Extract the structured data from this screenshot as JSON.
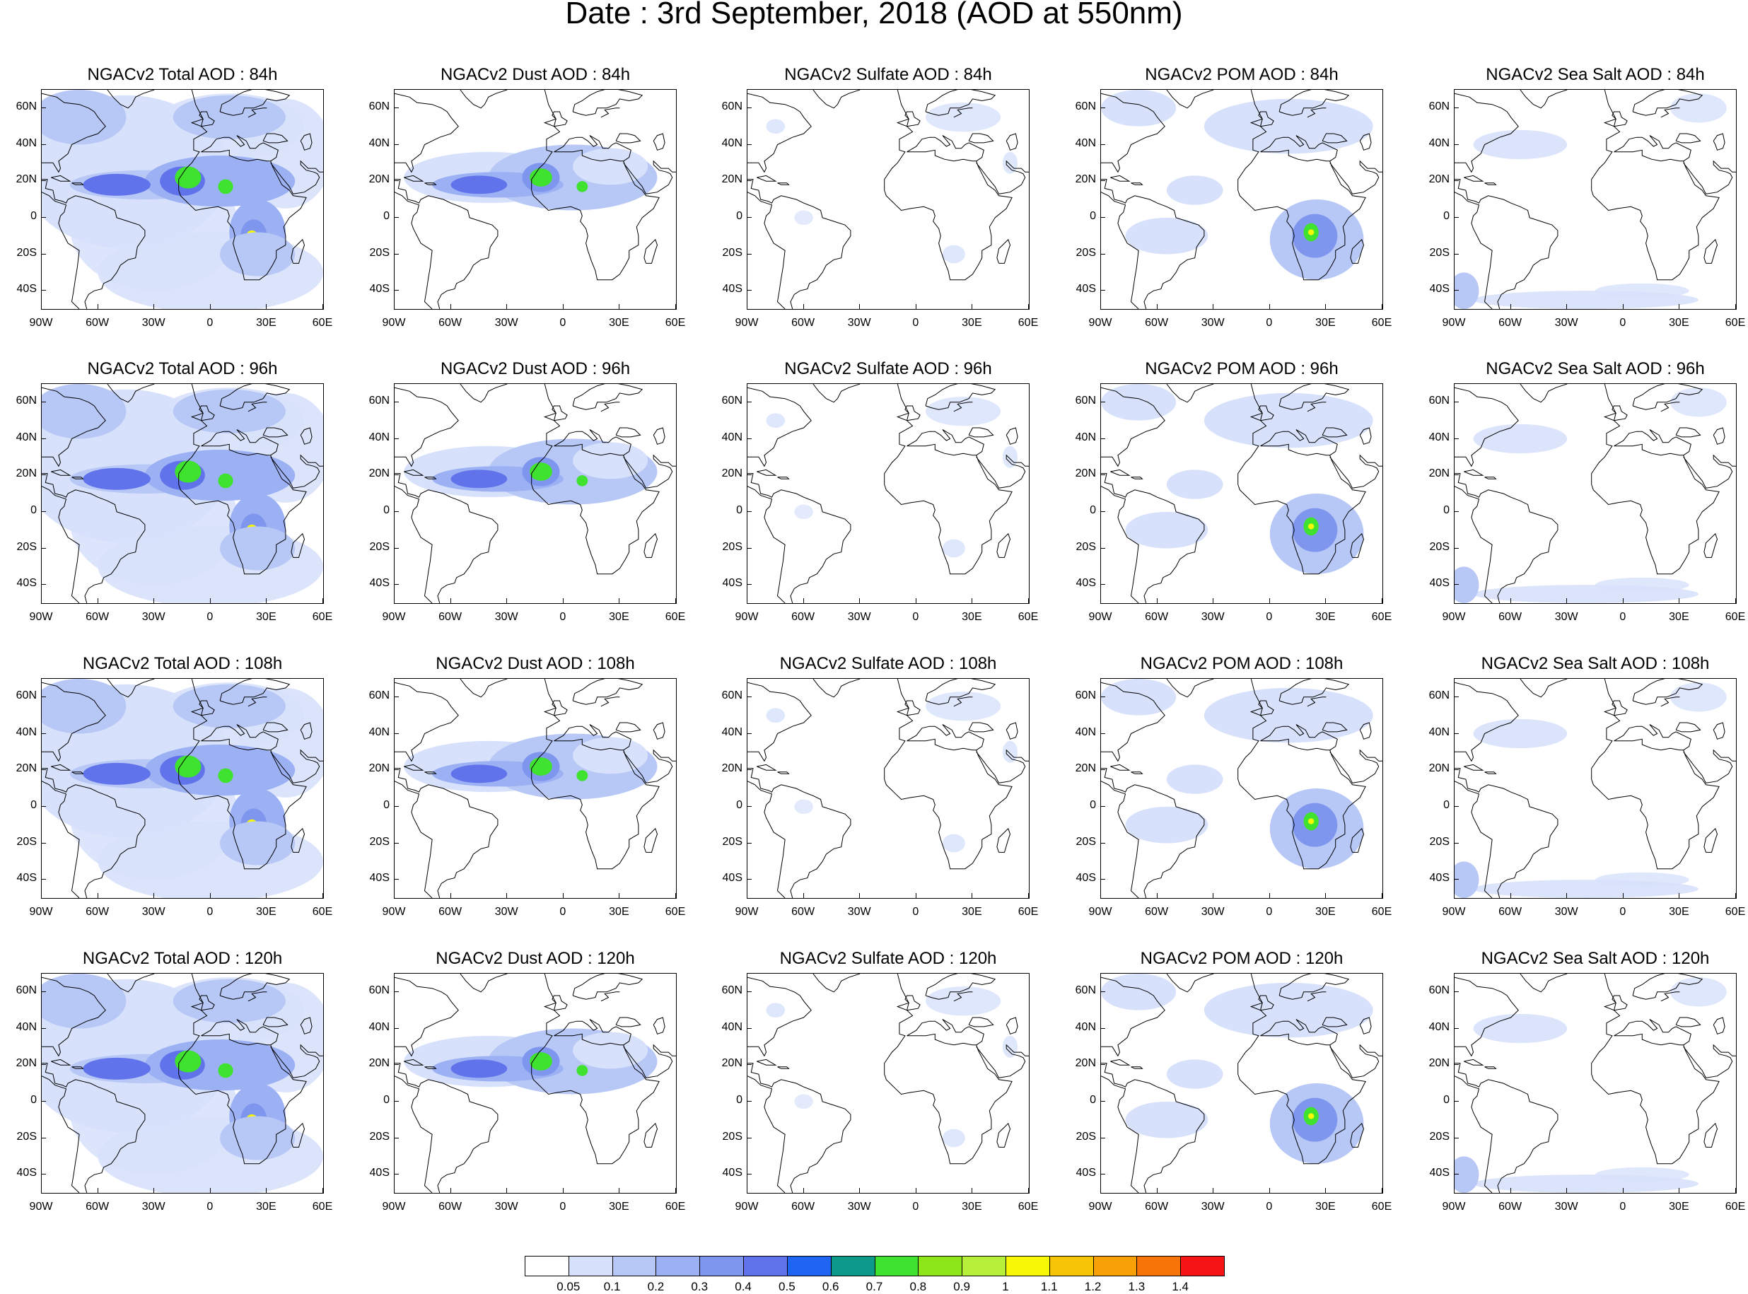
{
  "title": "Date : 3rd September, 2018 (AOD at 550nm)",
  "rows": [
    {
      "hour": "84h",
      "titles": [
        "NGACv2 Total AOD : 84h",
        "NGACv2 Dust AOD : 84h",
        "NGACv2 Sulfate AOD : 84h",
        "NGACv2 POM AOD : 84h",
        "NGACv2 Sea Salt AOD : 84h"
      ]
    },
    {
      "hour": "96h",
      "titles": [
        "NGACv2 Total AOD : 96h",
        "NGACv2 Dust AOD : 96h",
        "NGACv2 Sulfate AOD : 96h",
        "NGACv2 POM AOD : 96h",
        "NGACv2 Sea Salt AOD : 96h"
      ]
    },
    {
      "hour": "108h",
      "titles": [
        "NGACv2 Total AOD : 108h",
        "NGACv2 Dust AOD : 108h",
        "NGACv2 Sulfate AOD : 108h",
        "NGACv2 POM AOD : 108h",
        "NGACv2 Sea Salt AOD : 108h"
      ]
    },
    {
      "hour": "120h",
      "titles": [
        "NGACv2 Total AOD : 120h",
        "NGACv2 Dust AOD : 120h",
        "NGACv2 Sulfate AOD : 120h",
        "NGACv2 POM AOD : 120h",
        "NGACv2 Sea Salt  AOD : 120h"
      ]
    }
  ],
  "lat_labels": [
    "60N",
    "40N",
    "20N",
    "0",
    "20S",
    "40S"
  ],
  "lat_values": [
    60,
    40,
    20,
    0,
    -20,
    -40
  ],
  "lon_labels": [
    "90W",
    "60W",
    "30W",
    "0",
    "30E",
    "60E"
  ],
  "lon_values": [
    -90,
    -60,
    -30,
    0,
    30,
    60
  ],
  "map_extent": {
    "lon": [
      -90,
      60
    ],
    "lat": [
      -50,
      70
    ]
  },
  "colorbar": {
    "labels": [
      "0.05",
      "0.1",
      "0.2",
      "0.3",
      "0.4",
      "0.5",
      "0.6",
      "0.7",
      "0.8",
      "0.9",
      "1",
      "1.1",
      "1.2",
      "1.3",
      "1.4"
    ],
    "colors": [
      "#ffffff",
      "#d7e1fb",
      "#b7c7f6",
      "#9cb1f4",
      "#7f96ef",
      "#6173ea",
      "#1f64f2",
      "#0e9a8a",
      "#3fe22f",
      "#8ce61a",
      "#b6f03a",
      "#f8f806",
      "#f7c406",
      "#f7a107",
      "#f67408",
      "#f71414"
    ]
  },
  "map_colors": {
    "light": "#d7e1fb",
    "mid": "#b7c7f6",
    "med": "#9cb1f4",
    "strong": "#7f96ef",
    "deep": "#6173ea",
    "green": "#3fe22f",
    "yellow": "#f8f806",
    "red": "#f71414",
    "coast": "#000000"
  }
}
